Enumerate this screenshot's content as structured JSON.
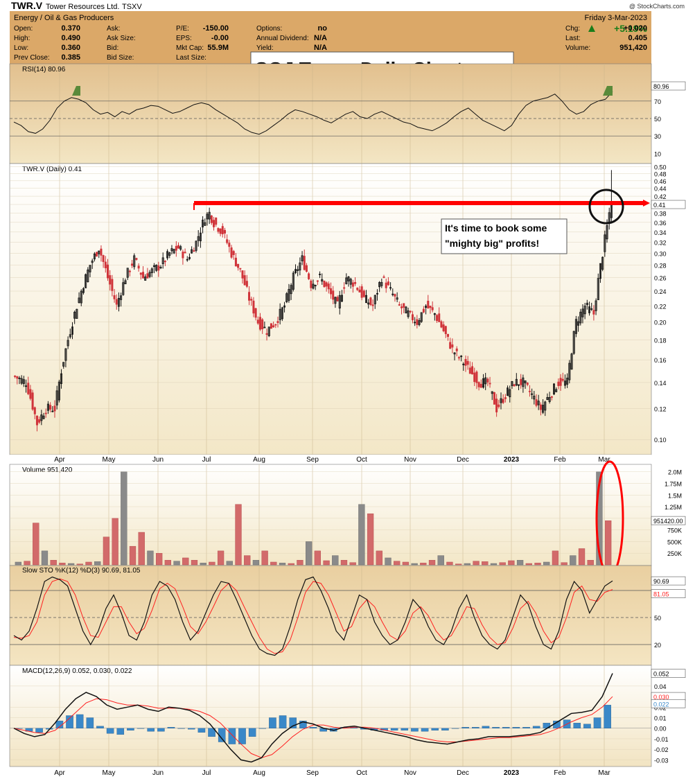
{
  "header": {
    "symbol": "TWR.V",
    "company": "Tower Resources Ltd.",
    "exchange": "TSXV",
    "industry": "Energy / Oil & Gas Producers",
    "credit": "@ StockCharts.com",
    "date": "Friday   3-Mar-2023",
    "change_pct": "+5.19%",
    "fields": [
      {
        "label": "Open:",
        "value": "0.370"
      },
      {
        "label": "High:",
        "value": "0.490"
      },
      {
        "label": "Low:",
        "value": "0.360"
      },
      {
        "label": "Prev Close:",
        "value": "0.385"
      },
      {
        "label": "Ask:",
        "value": ""
      },
      {
        "label": "Ask Size:",
        "value": ""
      },
      {
        "label": "Bid:",
        "value": ""
      },
      {
        "label": "Bid Size:",
        "value": ""
      },
      {
        "label": "P/E:",
        "value": "-150.00"
      },
      {
        "label": "EPS:",
        "value": "-0.00"
      },
      {
        "label": "Mkt Cap:",
        "value": "55.9M"
      },
      {
        "label": "Last Size:",
        "value": ""
      },
      {
        "label": "Options:",
        "value": "no"
      },
      {
        "label": "Annual Dividend:",
        "value": "N/A"
      },
      {
        "label": "Yield:",
        "value": "N/A"
      },
      {
        "label": "Chg:",
        "value": "+0.020"
      },
      {
        "label": "Last:",
        "value": "0.405"
      },
      {
        "label": "Volume:",
        "value": "951,420"
      }
    ]
  },
  "title_box": "SGJ Tower Daily Chart",
  "callout": [
    "It's time to book some",
    "\"mighty big\" profits!"
  ],
  "colors": {
    "panel_bg": "#e8cc99",
    "header_bg": "#dba868",
    "up": "#111111",
    "down": "#d0343a",
    "resistance": "#ff0000",
    "macd_hist": "#3a88c8",
    "signal": "#ff2020"
  },
  "chart_data": [
    {
      "type": "candlestick",
      "panel": "price",
      "label": "TWR.V (Daily) 0.41",
      "y_ticks": [
        0.1,
        0.12,
        0.14,
        0.16,
        0.18,
        0.2,
        0.22,
        0.24,
        0.26,
        0.28,
        0.3,
        0.32,
        0.34,
        0.36,
        0.38,
        0.4,
        0.42,
        0.44,
        0.46,
        0.48,
        0.5
      ],
      "y_scale": "log",
      "ylim": [
        0.093,
        0.505
      ],
      "x_month_labels": [
        "Apr",
        "May",
        "Jun",
        "Jul",
        "Aug",
        "Sep",
        "Oct",
        "Nov",
        "Dec",
        "2023",
        "Feb",
        "Mar"
      ],
      "last_value_label": "0.41",
      "resistance_level": 0.4,
      "close_path": [
        [
          0,
          0.145
        ],
        [
          5,
          0.14
        ],
        [
          10,
          0.11
        ],
        [
          14,
          0.12
        ],
        [
          18,
          0.12
        ],
        [
          22,
          0.16
        ],
        [
          26,
          0.2
        ],
        [
          30,
          0.24
        ],
        [
          34,
          0.28
        ],
        [
          38,
          0.31
        ],
        [
          42,
          0.26
        ],
        [
          46,
          0.22
        ],
        [
          50,
          0.26
        ],
        [
          54,
          0.29
        ],
        [
          58,
          0.26
        ],
        [
          62,
          0.27
        ],
        [
          66,
          0.28
        ],
        [
          70,
          0.3
        ],
        [
          74,
          0.31
        ],
        [
          78,
          0.29
        ],
        [
          82,
          0.32
        ],
        [
          86,
          0.37
        ],
        [
          88,
          0.38
        ],
        [
          90,
          0.36
        ],
        [
          94,
          0.34
        ],
        [
          98,
          0.3
        ],
        [
          102,
          0.27
        ],
        [
          106,
          0.23
        ],
        [
          110,
          0.2
        ],
        [
          114,
          0.19
        ],
        [
          118,
          0.2
        ],
        [
          122,
          0.22
        ],
        [
          126,
          0.26
        ],
        [
          130,
          0.29
        ],
        [
          134,
          0.25
        ],
        [
          138,
          0.26
        ],
        [
          142,
          0.24
        ],
        [
          146,
          0.22
        ],
        [
          150,
          0.26
        ],
        [
          154,
          0.25
        ],
        [
          158,
          0.23
        ],
        [
          162,
          0.22
        ],
        [
          166,
          0.26
        ],
        [
          170,
          0.24
        ],
        [
          174,
          0.22
        ],
        [
          178,
          0.21
        ],
        [
          182,
          0.2
        ],
        [
          186,
          0.22
        ],
        [
          190,
          0.21
        ],
        [
          194,
          0.19
        ],
        [
          198,
          0.17
        ],
        [
          202,
          0.16
        ],
        [
          206,
          0.15
        ],
        [
          210,
          0.14
        ],
        [
          214,
          0.14
        ],
        [
          218,
          0.12
        ],
        [
          222,
          0.13
        ],
        [
          226,
          0.14
        ],
        [
          230,
          0.14
        ],
        [
          234,
          0.13
        ],
        [
          238,
          0.12
        ],
        [
          242,
          0.13
        ],
        [
          246,
          0.14
        ],
        [
          250,
          0.14
        ],
        [
          254,
          0.2
        ],
        [
          258,
          0.22
        ],
        [
          262,
          0.21
        ],
        [
          266,
          0.3
        ],
        [
          268,
          0.35
        ],
        [
          270,
          0.41
        ]
      ],
      "ohlc_last": {
        "open": 0.37,
        "high": 0.49,
        "low": 0.36,
        "close": 0.405
      }
    },
    {
      "type": "line",
      "panel": "rsi",
      "label": "RSI(14) 80.96",
      "last_value_label": "80.96",
      "y_ticks": [
        10,
        30,
        50,
        70,
        90
      ],
      "ylim": [
        0,
        100
      ],
      "ref_lines": [
        30,
        50,
        70
      ],
      "values": [
        46,
        42,
        35,
        33,
        38,
        48,
        62,
        70,
        74,
        72,
        68,
        60,
        55,
        57,
        52,
        58,
        55,
        60,
        62,
        65,
        64,
        60,
        56,
        58,
        62,
        66,
        68,
        66,
        60,
        55,
        50,
        45,
        38,
        34,
        32,
        36,
        42,
        48,
        55,
        60,
        58,
        55,
        52,
        48,
        45,
        50,
        55,
        58,
        52,
        50,
        55,
        58,
        54,
        50,
        46,
        44,
        40,
        38,
        36,
        40,
        45,
        52,
        58,
        62,
        55,
        48,
        44,
        40,
        36,
        42,
        55,
        65,
        70,
        72,
        74,
        78,
        70,
        60,
        55,
        58,
        66,
        70,
        72,
        80.96
      ]
    },
    {
      "type": "bar",
      "panel": "volume",
      "label": "Volume 951,420",
      "last_value_label": "951420.00",
      "y_ticks": [
        250000,
        500000,
        750000,
        1000000,
        1250000,
        1500000,
        1750000,
        2000000
      ],
      "y_tick_labels": [
        "250K",
        "500K",
        "750K",
        "1.0M",
        "1.25M",
        "1.5M",
        "1.75M",
        "2.0M"
      ],
      "ylim": [
        0,
        2100000
      ],
      "values": [
        60000,
        80000,
        900000,
        300000,
        100000,
        40000,
        30000,
        20000,
        60000,
        70000,
        600000,
        1000000,
        2000000,
        400000,
        700000,
        300000,
        250000,
        100000,
        80000,
        150000,
        100000,
        40000,
        60000,
        300000,
        80000,
        1300000,
        200000,
        100000,
        300000,
        60000,
        40000,
        30000,
        100000,
        500000,
        300000,
        90000,
        200000,
        100000,
        50000,
        1300000,
        1100000,
        300000,
        150000,
        80000,
        60000,
        30000,
        40000,
        100000,
        200000,
        60000,
        20000,
        30000,
        80000,
        70000,
        30000,
        50000,
        90000,
        100000,
        30000,
        40000,
        60000,
        300000,
        50000,
        200000,
        350000,
        100000,
        2000000,
        950000
      ]
    },
    {
      "type": "line",
      "panel": "slow_sto",
      "label": "Slow STO %K(12) %D(3) 90.69, 81.05",
      "series": [
        {
          "name": "%K(12)",
          "last": 90.69
        },
        {
          "name": "%D(3)",
          "last": 81.05
        }
      ],
      "y_ticks": [
        20,
        50,
        80
      ],
      "ylim": [
        0,
        100
      ],
      "ref_lines": [
        20,
        50,
        80
      ],
      "k_values": [
        30,
        25,
        35,
        60,
        90,
        95,
        92,
        85,
        60,
        35,
        20,
        35,
        60,
        75,
        55,
        30,
        25,
        45,
        75,
        90,
        85,
        70,
        45,
        25,
        35,
        55,
        75,
        90,
        88,
        70,
        50,
        30,
        15,
        10,
        8,
        15,
        40,
        70,
        92,
        95,
        80,
        60,
        35,
        25,
        50,
        75,
        70,
        45,
        30,
        20,
        25,
        45,
        70,
        60,
        40,
        25,
        20,
        35,
        60,
        75,
        50,
        30,
        20,
        15,
        25,
        50,
        75,
        65,
        40,
        20,
        15,
        35,
        70,
        90,
        80,
        55,
        70,
        85,
        90.69
      ],
      "d_values": [
        28,
        27,
        30,
        45,
        75,
        90,
        93,
        90,
        75,
        50,
        30,
        28,
        45,
        62,
        62,
        45,
        32,
        38,
        58,
        82,
        88,
        82,
        62,
        40,
        32,
        45,
        62,
        80,
        88,
        80,
        62,
        45,
        28,
        15,
        10,
        12,
        25,
        50,
        78,
        90,
        88,
        75,
        55,
        35,
        40,
        60,
        70,
        62,
        45,
        30,
        25,
        35,
        55,
        62,
        52,
        35,
        25,
        30,
        45,
        62,
        60,
        42,
        28,
        20,
        22,
        38,
        60,
        68,
        55,
        35,
        22,
        28,
        50,
        78,
        85,
        70,
        68,
        78,
        81.05
      ]
    },
    {
      "type": "line",
      "panel": "macd",
      "label": "MACD(12,26,9) 0.052, 0.030, 0.022",
      "series": [
        {
          "name": "MACD",
          "last": 0.052
        },
        {
          "name": "Signal",
          "last": 0.03
        },
        {
          "name": "Histogram",
          "last": 0.022
        }
      ],
      "y_ticks": [
        -0.03,
        -0.02,
        -0.01,
        0.0,
        0.01,
        0.02,
        0.04
      ],
      "y_tick_labels": [
        "-0.03",
        "-0.02",
        "-0.01",
        "0.00",
        "0.01",
        "0.02",
        "0.04"
      ],
      "ylim": [
        -0.035,
        0.057
      ],
      "macd": [
        0.0,
        -0.005,
        -0.008,
        -0.006,
        0.005,
        0.018,
        0.028,
        0.034,
        0.03,
        0.022,
        0.018,
        0.02,
        0.022,
        0.018,
        0.016,
        0.02,
        0.019,
        0.017,
        0.012,
        0.004,
        -0.008,
        -0.02,
        -0.03,
        -0.032,
        -0.028,
        -0.015,
        -0.005,
        0.002,
        0.006,
        0.004,
        0.0,
        -0.002,
        0.001,
        0.002,
        0.0,
        -0.002,
        -0.004,
        -0.006,
        -0.008,
        -0.011,
        -0.013,
        -0.014,
        -0.015,
        -0.013,
        -0.011,
        -0.01,
        -0.008,
        -0.008,
        -0.008,
        -0.007,
        -0.006,
        -0.004,
        0.002,
        0.008,
        0.014,
        0.015,
        0.017,
        0.03,
        0.052
      ],
      "signal": [
        0.0,
        -0.002,
        -0.004,
        -0.005,
        -0.002,
        0.006,
        0.015,
        0.024,
        0.028,
        0.027,
        0.024,
        0.022,
        0.022,
        0.021,
        0.019,
        0.019,
        0.019,
        0.018,
        0.016,
        0.012,
        0.005,
        -0.005,
        -0.015,
        -0.024,
        -0.028,
        -0.025,
        -0.017,
        -0.008,
        -0.001,
        0.003,
        0.003,
        0.001,
        0.0,
        0.001,
        0.001,
        0.0,
        -0.002,
        -0.004,
        -0.006,
        -0.008,
        -0.01,
        -0.012,
        -0.013,
        -0.013,
        -0.012,
        -0.011,
        -0.01,
        -0.009,
        -0.009,
        -0.008,
        -0.007,
        -0.006,
        -0.003,
        0.001,
        0.006,
        0.01,
        0.013,
        0.02,
        0.03
      ]
    }
  ]
}
